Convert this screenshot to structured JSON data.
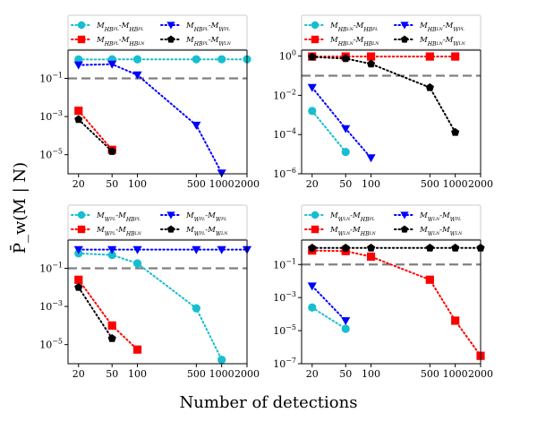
{
  "chart_data": {
    "type": "line",
    "figure": {
      "xlabel": "Number of detections",
      "ylabel": "P̄_w(M | N)",
      "threshold": 0.1,
      "x_tick_values": [
        20,
        50,
        100,
        500,
        1000,
        2000
      ],
      "x_tick_labels": [
        "20",
        "50",
        "100",
        "500",
        "1000",
        "2000"
      ],
      "xlim": [
        15,
        2000
      ]
    },
    "panels": [
      {
        "name": "panel-top-left",
        "ylim": [
          1e-06,
          3
        ],
        "y_ticks": [
          -1,
          -3,
          -5
        ],
        "legend": [
          "M_HBPL-M_HBPL",
          "M_HBPL-M_WPL",
          "M_HBPL-M_HBLN",
          "M_HBPL-M_WLN"
        ],
        "series": [
          {
            "name": "M_HBPL-M_HBPL",
            "marker": "circle",
            "color": "#17becf",
            "x": [
              20,
              50,
              100,
              500,
              1000,
              2000
            ],
            "values": [
              0.98,
              0.99,
              0.99,
              1.0,
              1.0,
              1.0
            ]
          },
          {
            "name": "M_HBPL-M_WPL",
            "marker": "triangle-down",
            "color": "#0000ff",
            "x": [
              20,
              50,
              100,
              500,
              1000
            ],
            "values": [
              0.5,
              0.55,
              0.15,
              0.00035,
              1.1e-06
            ]
          },
          {
            "name": "M_HBPL-M_HBLN",
            "marker": "square",
            "color": "#ff0000",
            "x": [
              20,
              50
            ],
            "values": [
              0.002,
              1.8e-05
            ]
          },
          {
            "name": "M_HBPL-M_WLN",
            "marker": "pentagon",
            "color": "#000000",
            "x": [
              20,
              50
            ],
            "values": [
              0.0007,
              1.5e-05
            ]
          }
        ]
      },
      {
        "name": "panel-top-right",
        "ylim": [
          1e-06,
          2
        ],
        "y_ticks": [
          0,
          -2,
          -4,
          -6
        ],
        "legend": [
          "M_HBLN-M_HBPL",
          "M_HBLN-M_WPL",
          "M_HBLN-M_HBLN",
          "M_HBLN-M_WLN"
        ],
        "series": [
          {
            "name": "M_HBLN-M_HBPL",
            "marker": "circle",
            "color": "#17becf",
            "x": [
              20,
              50
            ],
            "values": [
              0.0016,
              1.3e-05
            ]
          },
          {
            "name": "M_HBLN-M_WPL",
            "marker": "triangle-down",
            "color": "#0000ff",
            "x": [
              20,
              50,
              100
            ],
            "values": [
              0.025,
              0.0002,
              6.5e-06
            ]
          },
          {
            "name": "M_HBLN-M_HBLN",
            "marker": "square",
            "color": "#ff0000",
            "x": [
              20,
              50,
              100,
              500,
              1000
            ],
            "values": [
              0.95,
              0.95,
              0.95,
              0.95,
              0.95
            ]
          },
          {
            "name": "M_HBLN-M_WLN",
            "marker": "pentagon",
            "color": "#000000",
            "x": [
              20,
              50,
              100,
              500,
              1000
            ],
            "values": [
              0.9,
              0.75,
              0.4,
              0.025,
              0.00013
            ]
          }
        ]
      },
      {
        "name": "panel-bottom-left",
        "ylim": [
          1e-06,
          3
        ],
        "y_ticks": [
          -1,
          -3,
          -5
        ],
        "legend": [
          "M_WPL-M_HBPL",
          "M_WPL-M_WPL",
          "M_WPL-M_HBLN",
          "M_WPL-M_WLN"
        ],
        "series": [
          {
            "name": "M_WPL-M_HBPL",
            "marker": "circle",
            "color": "#17becf",
            "x": [
              20,
              50,
              100,
              500,
              1000
            ],
            "values": [
              0.6,
              0.5,
              0.18,
              0.0008,
              1.6e-06
            ]
          },
          {
            "name": "M_WPL-M_WPL",
            "marker": "triangle-down",
            "color": "#0000ff",
            "x": [
              20,
              50,
              100,
              500,
              1000,
              2000
            ],
            "values": [
              0.95,
              0.95,
              0.95,
              0.95,
              0.95,
              0.95
            ]
          },
          {
            "name": "M_WPL-M_HBLN",
            "marker": "square",
            "color": "#ff0000",
            "x": [
              20,
              50,
              100
            ],
            "values": [
              0.025,
              0.0001,
              5.5e-06
            ]
          },
          {
            "name": "M_WPL-M_WLN",
            "marker": "pentagon",
            "color": "#000000",
            "x": [
              20,
              50
            ],
            "values": [
              0.01,
              2.1e-05
            ]
          }
        ]
      },
      {
        "name": "panel-bottom-right",
        "ylim": [
          1e-07,
          3
        ],
        "y_ticks": [
          -1,
          -3,
          -5,
          -7
        ],
        "legend": [
          "M_WLN-M_HBPL",
          "M_WLN-M_WPL",
          "M_WLN-M_HBLN",
          "M_WLN-M_WLN"
        ],
        "series": [
          {
            "name": "M_WLN-M_HBPL",
            "marker": "circle",
            "color": "#17becf",
            "x": [
              20,
              50
            ],
            "values": [
              0.00025,
              1.3e-05
            ]
          },
          {
            "name": "M_WLN-M_WPL",
            "marker": "triangle-down",
            "color": "#0000ff",
            "x": [
              20,
              50
            ],
            "values": [
              0.005,
              4e-05
            ]
          },
          {
            "name": "M_WLN-M_HBLN",
            "marker": "square",
            "color": "#ff0000",
            "x": [
              20,
              50,
              100,
              500,
              1000,
              2000
            ],
            "values": [
              0.7,
              0.65,
              0.3,
              0.012,
              4e-05,
              3e-07
            ]
          },
          {
            "name": "M_WLN-M_WLN",
            "marker": "pentagon",
            "color": "#000000",
            "x": [
              20,
              50,
              100,
              500,
              1000,
              2000
            ],
            "values": [
              1.0,
              1.0,
              1.0,
              1.0,
              1.0,
              1.0
            ]
          }
        ]
      }
    ]
  }
}
